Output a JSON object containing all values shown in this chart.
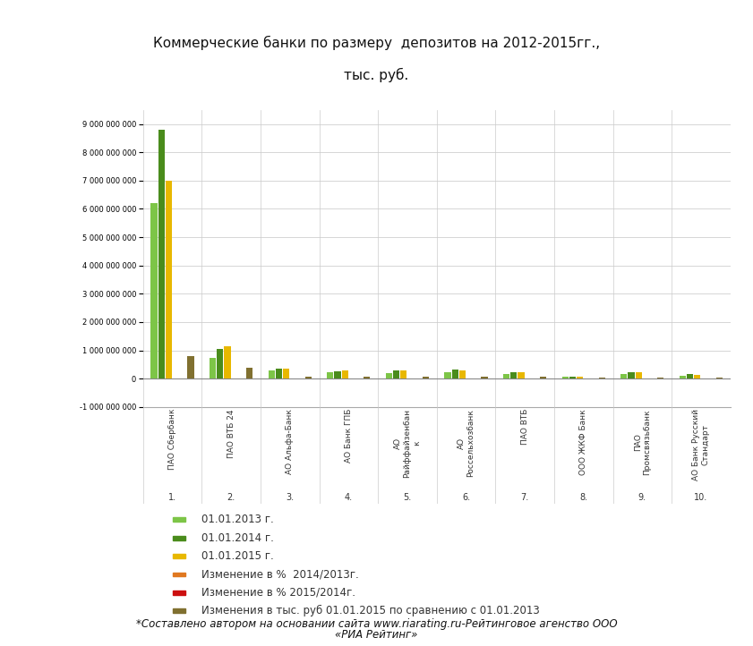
{
  "title_line1": "Коммерческие банки по размеру  депозитов на 2012-2015гг.,",
  "title_line2": "тыс. руб.",
  "banks": [
    "ПАО Сбербанк",
    "ПАО ВТБ 24",
    "АО Альфа-Банк",
    "АО Банк ГПБ",
    "АО\nРайффайзенбан\nк",
    "АО\nРоссельхозбанк",
    "ПАО ВТБ",
    "ООО ЖКФ Банк",
    "ПАО\nПромсвязьбанк",
    "АО Банк Русский\nСтандарт"
  ],
  "bank_numbers": [
    "1.",
    "2.",
    "3.",
    "4.",
    "5.",
    "6.",
    "7.",
    "8.",
    "9.",
    "10."
  ],
  "series_labels": [
    "01.01.2013 г.",
    "01.01.2014 г.",
    "01.01.2015 г.",
    "Изменение в %  2014/2013г.",
    "Изменение в % 2015/2014г.",
    "Изменения в тыс. руб 01.01.2015 по сравнению с 01.01.2013"
  ],
  "series_colors": [
    "#7dc547",
    "#4a8c1c",
    "#e8b800",
    "#e07820",
    "#cc1010",
    "#807030"
  ],
  "data_2013": [
    6200000000,
    750000000,
    280000000,
    220000000,
    200000000,
    230000000,
    180000000,
    60000000,
    170000000,
    110000000
  ],
  "data_2014": [
    8800000000,
    1050000000,
    370000000,
    260000000,
    295000000,
    310000000,
    230000000,
    80000000,
    220000000,
    155000000
  ],
  "data_2015": [
    7000000000,
    1150000000,
    360000000,
    290000000,
    280000000,
    285000000,
    240000000,
    85000000,
    215000000,
    145000000
  ],
  "data_change_pct_14_13": [
    10000000,
    8000000,
    3000000,
    3000000,
    3000000,
    3000000,
    3000000,
    1500000,
    2500000,
    2000000
  ],
  "data_change_pct_15_14": [
    -8000000,
    -6000000,
    -2000000,
    -2000000,
    -2000000,
    -2000000,
    -2000000,
    -1000000,
    -1800000,
    -1500000
  ],
  "data_change_abs": [
    800000000,
    400000000,
    80000000,
    70000000,
    80000000,
    55000000,
    60000000,
    25000000,
    45000000,
    35000000
  ],
  "ylim_min": -1000000000,
  "ylim_max": 9500000000,
  "ytick_vals": [
    -1000000000,
    0,
    1000000000,
    2000000000,
    3000000000,
    4000000000,
    5000000000,
    6000000000,
    7000000000,
    8000000000,
    9000000000
  ],
  "background_color": "#ffffff",
  "title_bg_color": "#d4e89a",
  "title_border_color": "#aabbaa",
  "footnote_line1": "*Составлено автором на основании сайта www.riarating.ru-Рейтинговое агенство ООО",
  "footnote_line2": "«РИА Рейтинг»"
}
